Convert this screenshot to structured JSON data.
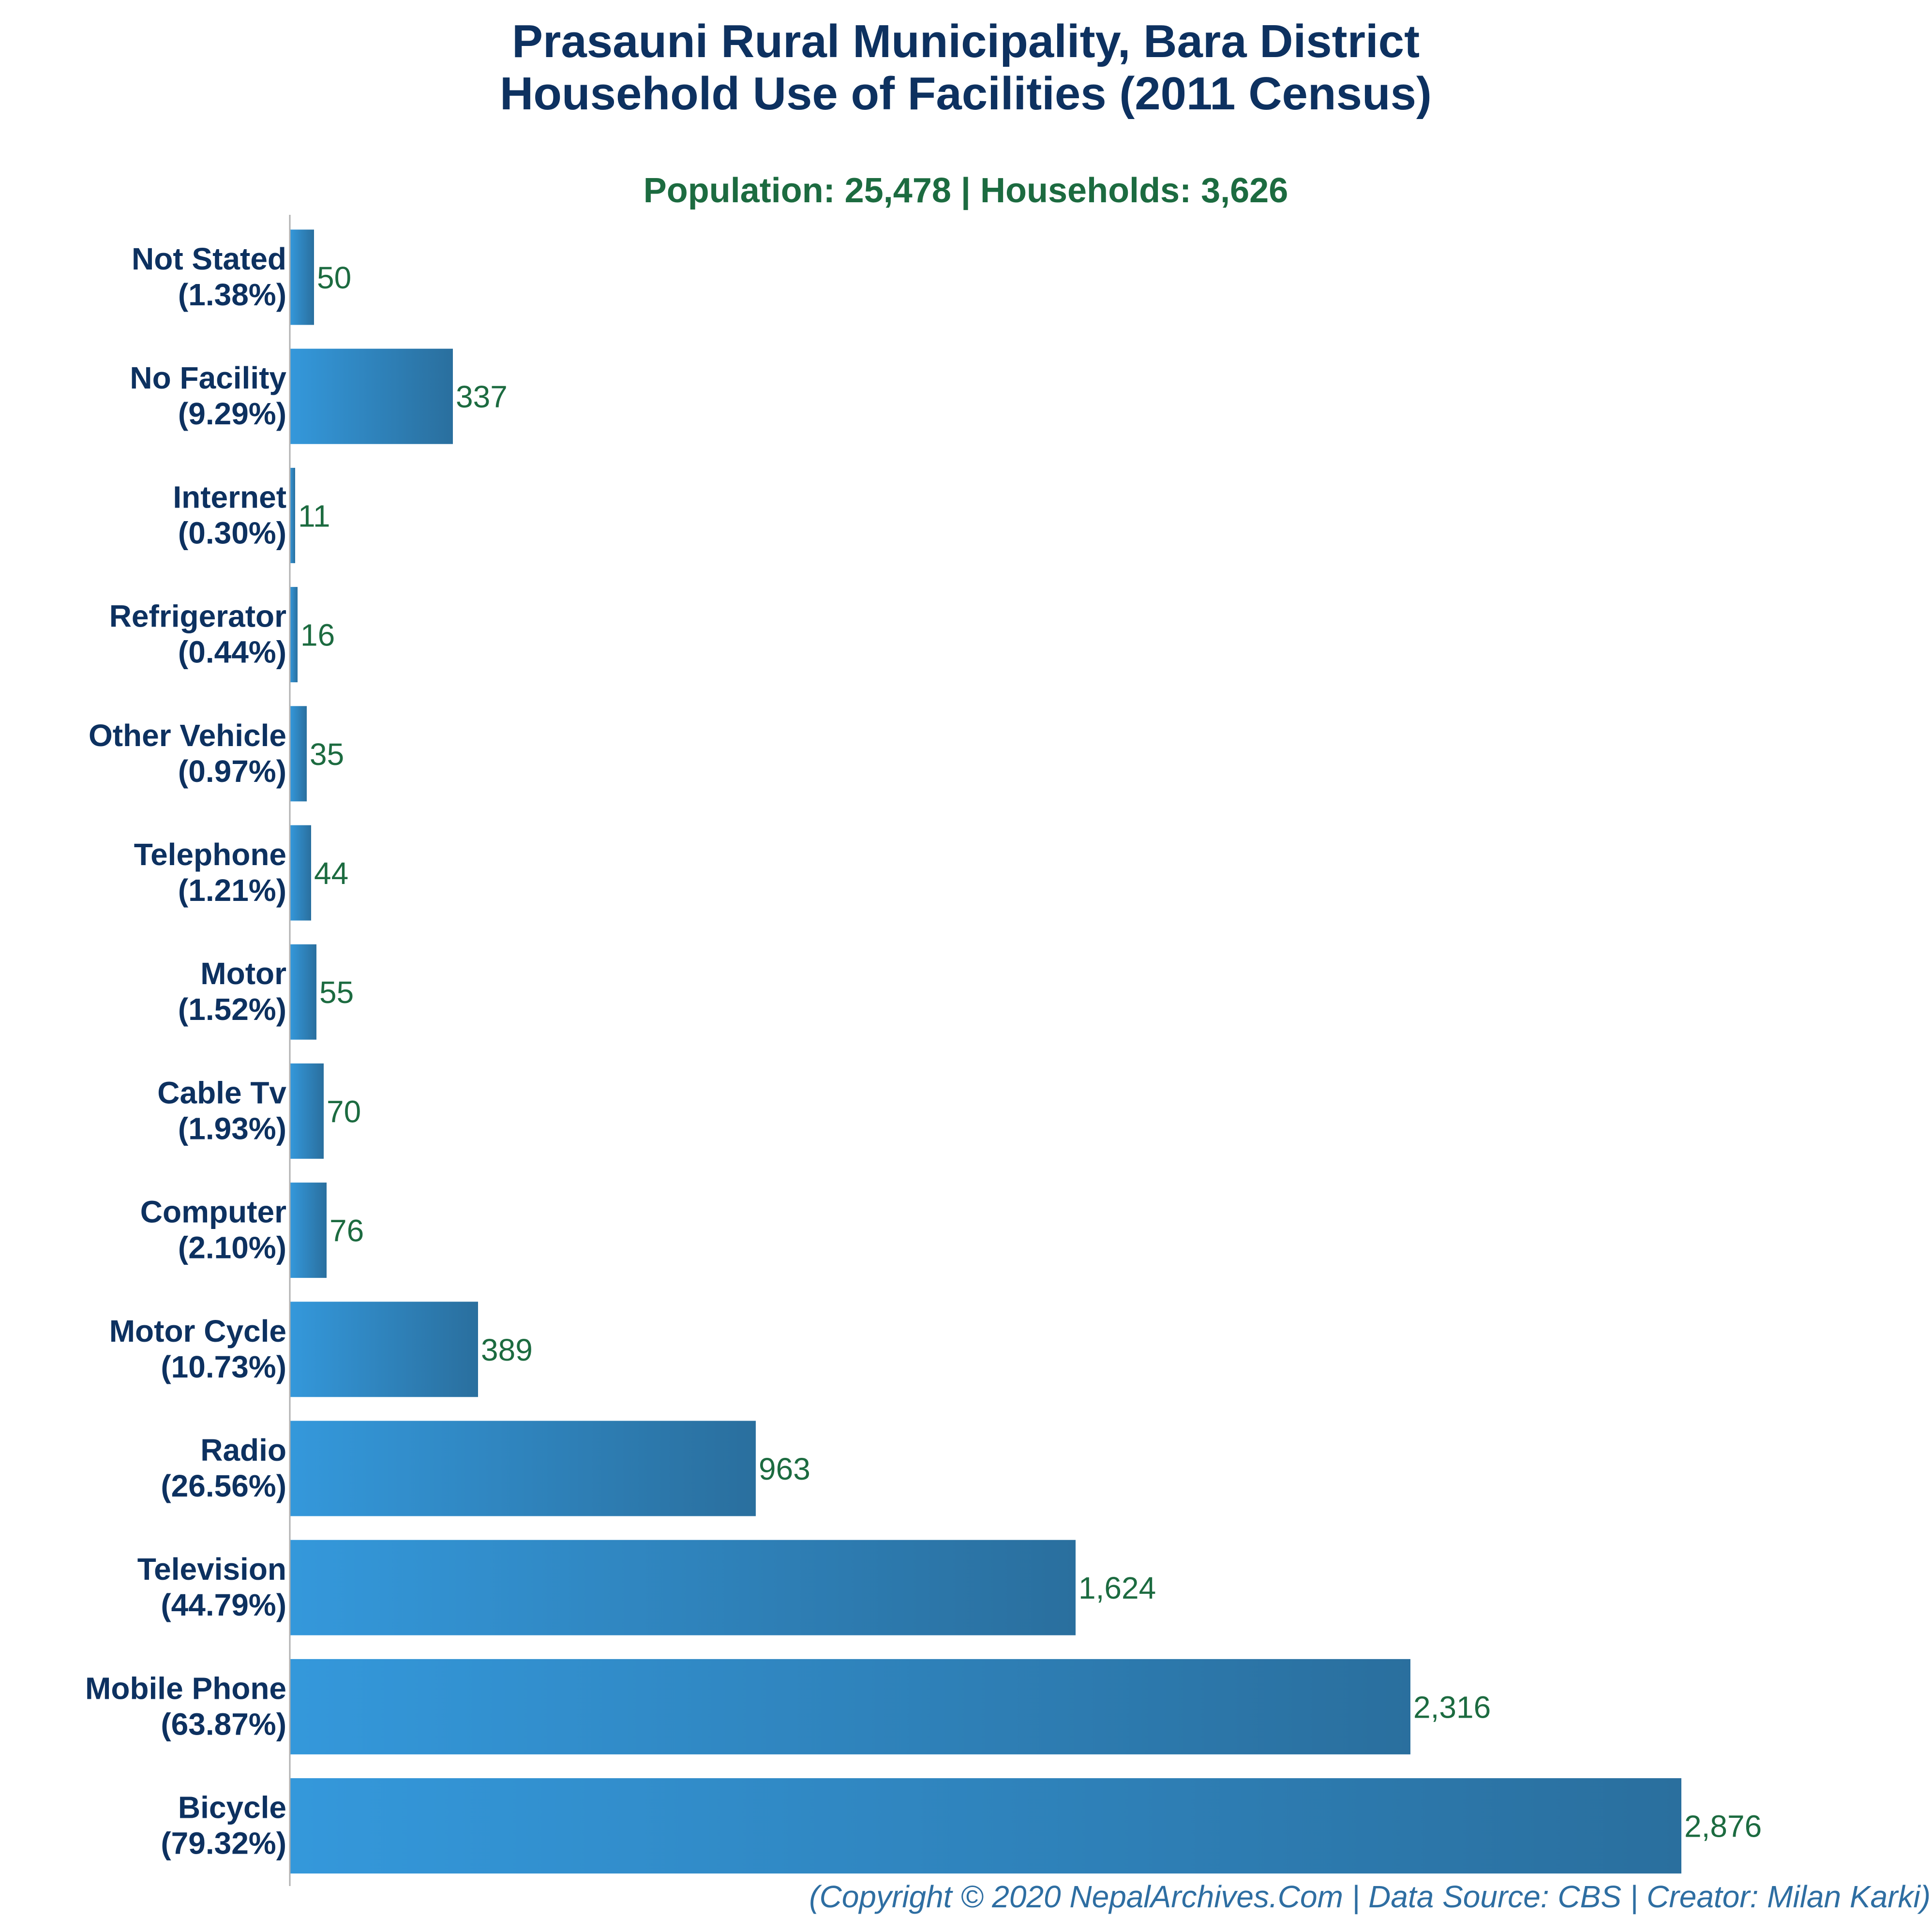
{
  "chart_data": {
    "type": "bar",
    "orientation": "horizontal",
    "title_line1": "Prasauni Rural Municipality, Bara District",
    "title_line2": "Household Use of Facilities (2011 Census)",
    "subtitle": "Population: 25,478 | Households: 3,626",
    "footer": "(Copyright © 2020 NepalArchives.Com | Data Source: CBS | Creator: Milan Karki)",
    "categories": [
      "Not Stated",
      "No Facility",
      "Internet",
      "Refrigerator",
      "Other Vehicle",
      "Telephone",
      "Motor",
      "Cable Tv",
      "Computer",
      "Motor Cycle",
      "Radio",
      "Television",
      "Mobile Phone",
      "Bicycle"
    ],
    "percentages": [
      "(1.38%)",
      "(9.29%)",
      "(0.30%)",
      "(0.44%)",
      "(0.97%)",
      "(1.21%)",
      "(1.52%)",
      "(1.93%)",
      "(2.10%)",
      "(10.73%)",
      "(26.56%)",
      "(44.79%)",
      "(63.87%)",
      "(79.32%)"
    ],
    "values": [
      50,
      337,
      11,
      16,
      35,
      44,
      55,
      70,
      76,
      389,
      963,
      1624,
      2316,
      2876
    ],
    "value_labels": [
      "50",
      "337",
      "11",
      "16",
      "35",
      "44",
      "55",
      "70",
      "76",
      "389",
      "963",
      "1,624",
      "2,316",
      "2,876"
    ],
    "xlim": [
      0,
      3060
    ],
    "grid": false,
    "bar_color_start": "#3498db",
    "bar_color_end": "#2a6f9e",
    "title_color": "#0d3160",
    "subtitle_color": "#1c6b40",
    "footer_color": "#2e6ea2"
  }
}
